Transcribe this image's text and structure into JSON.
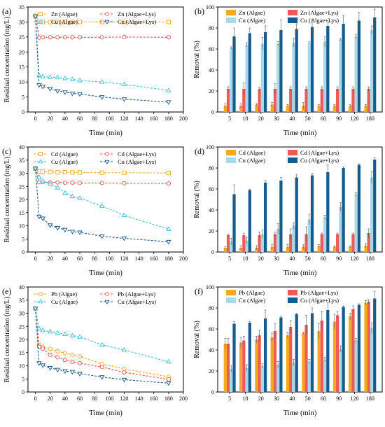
{
  "chart_data": [
    {
      "panel": "(a)",
      "type": "line",
      "xlabel": "Time (min)",
      "ylabel": "Residual concentration (mg/L)",
      "xlim": [
        -10,
        200
      ],
      "ylim": [
        0,
        35
      ],
      "xticks": [
        0,
        20,
        40,
        60,
        80,
        100,
        120,
        140,
        160,
        180,
        200
      ],
      "yticks": [
        0,
        5,
        10,
        15,
        20,
        25,
        30,
        35
      ],
      "legend": "top, two columns",
      "series": [
        {
          "name": "Zn (Algae)",
          "color": "#F5A623",
          "marker": "square",
          "dash": "dash",
          "x": [
            0,
            5,
            10,
            20,
            30,
            40,
            50,
            60,
            90,
            120,
            180
          ],
          "y": [
            31.9,
            30.1,
            30.0,
            30.0,
            30.0,
            30.0,
            30.0,
            30.0,
            30.0,
            30.0,
            30.0
          ]
        },
        {
          "name": "Zn (Algae+Lys)",
          "color": "#E8554E",
          "marker": "circle",
          "dash": "dash",
          "x": [
            0,
            5,
            10,
            20,
            30,
            40,
            50,
            60,
            90,
            120,
            180
          ],
          "y": [
            31.9,
            24.8,
            24.9,
            24.9,
            24.9,
            24.9,
            24.9,
            24.9,
            24.9,
            25.0,
            24.9
          ]
        },
        {
          "name": "Cu (Algae)",
          "color": "#3FC1E0",
          "marker": "triangle-up",
          "dash": "dash",
          "x": [
            0,
            5,
            10,
            20,
            30,
            40,
            50,
            60,
            90,
            120,
            180
          ],
          "y": [
            31.9,
            12.2,
            11.8,
            11.6,
            11.5,
            11.2,
            10.9,
            10.5,
            10.0,
            9.2,
            7.2
          ]
        },
        {
          "name": "Cu (Algae+Lys)",
          "color": "#1E5A8C",
          "marker": "triangle-down",
          "dash": "dash",
          "x": [
            0,
            5,
            10,
            20,
            30,
            40,
            50,
            60,
            90,
            120,
            180
          ],
          "y": [
            31.9,
            9.0,
            8.5,
            7.8,
            7.0,
            6.6,
            6.2,
            6.0,
            5.0,
            4.3,
            3.3
          ]
        }
      ]
    },
    {
      "panel": "(b)",
      "type": "bar",
      "xlabel": "Time (min)",
      "ylabel": "Removal (%)",
      "ylim": [
        0,
        100
      ],
      "yticks": [
        0,
        20,
        40,
        60,
        80,
        100
      ],
      "categories": [
        "5",
        "10",
        "20",
        "30",
        "40",
        "50",
        "60",
        "90",
        "120",
        "180"
      ],
      "legend": "top, two columns",
      "series": [
        {
          "name": "Zn (Algae)",
          "color": "#F5A91E",
          "values": [
            6,
            6,
            7,
            7,
            6,
            6,
            6,
            6,
            6,
            6
          ],
          "err": [
            2,
            2,
            1,
            2,
            1,
            3,
            1,
            1,
            1,
            1
          ]
        },
        {
          "name": "Zn (Algae+Lys)",
          "color": "#EF5A57",
          "values": [
            22,
            22,
            22,
            22,
            22,
            22,
            22,
            22,
            22,
            22
          ],
          "err": [
            2,
            6,
            1,
            5,
            2,
            2,
            2,
            2,
            2,
            2
          ]
        },
        {
          "name": "Cu (Algae)",
          "color": "#A8D8EA",
          "values": [
            61,
            64,
            65,
            65,
            66,
            66,
            67,
            69,
            72,
            78
          ],
          "err": [
            1,
            2,
            6,
            2,
            4,
            1,
            5,
            1,
            2,
            4
          ]
        },
        {
          "name": "Cu (Algae+Lys)",
          "color": "#155C8E",
          "values": [
            72,
            75,
            76,
            78,
            79,
            81,
            82,
            84,
            87,
            90
          ],
          "err": [
            8,
            5,
            6,
            10,
            5,
            7,
            4,
            8,
            8,
            8
          ]
        }
      ]
    },
    {
      "panel": "(c)",
      "type": "line",
      "xlabel": "Time (min)",
      "ylabel": "Residual concentration (mg/L)",
      "xlim": [
        -10,
        200
      ],
      "ylim": [
        0,
        40
      ],
      "xticks": [
        0,
        20,
        40,
        60,
        80,
        100,
        120,
        140,
        160,
        180,
        200
      ],
      "yticks": [
        0,
        5,
        10,
        15,
        20,
        25,
        30,
        35,
        40
      ],
      "legend": "top, two columns",
      "series": [
        {
          "name": "Cd (Algae)",
          "color": "#F5A623",
          "marker": "square",
          "dash": "dash",
          "x": [
            0,
            5,
            10,
            20,
            30,
            40,
            50,
            60,
            90,
            120,
            180
          ],
          "y": [
            31.8,
            30.7,
            30.6,
            30.5,
            30.4,
            30.4,
            30.3,
            30.3,
            30.2,
            30.2,
            30.1
          ]
        },
        {
          "name": "Cd (Algae+Lys)",
          "color": "#E8554E",
          "marker": "circle",
          "dash": "dash",
          "x": [
            0,
            5,
            10,
            20,
            30,
            40,
            50,
            60,
            90,
            120,
            180
          ],
          "y": [
            31.8,
            26.6,
            26.6,
            26.5,
            26.5,
            26.4,
            26.4,
            26.3,
            26.3,
            26.2,
            26.1
          ]
        },
        {
          "name": "Cu (Algae)",
          "color": "#3FC1E0",
          "marker": "triangle-up",
          "dash": "dash",
          "x": [
            0,
            5,
            10,
            20,
            30,
            40,
            50,
            60,
            90,
            120,
            180
          ],
          "y": [
            31.8,
            28.5,
            27.0,
            26.0,
            24.5,
            22.5,
            21.2,
            20.5,
            17.5,
            14.0,
            8.7
          ]
        },
        {
          "name": "Cu (Algae+Lys)",
          "color": "#1E5A8C",
          "marker": "triangle-down",
          "dash": "dash",
          "x": [
            0,
            5,
            10,
            20,
            30,
            40,
            50,
            60,
            90,
            120,
            180
          ],
          "y": [
            31.8,
            13.5,
            12.8,
            10.2,
            9.2,
            8.5,
            7.8,
            7.5,
            6.0,
            5.2,
            3.9
          ]
        }
      ]
    },
    {
      "panel": "(d)",
      "type": "bar",
      "xlabel": "Time (min)",
      "ylabel": "Removal (%)",
      "ylim": [
        0,
        100
      ],
      "yticks": [
        0,
        20,
        40,
        60,
        80,
        100
      ],
      "categories": [
        "5",
        "10",
        "20",
        "30",
        "40",
        "50",
        "60",
        "90",
        "120",
        "180"
      ],
      "legend": "top, two columns",
      "series": [
        {
          "name": "Cd (Algae)",
          "color": "#F5A91E",
          "values": [
            4,
            4,
            4,
            5,
            5,
            5,
            6,
            5,
            5,
            6
          ],
          "err": [
            1,
            2,
            2,
            2,
            2,
            2,
            1,
            1,
            1,
            2
          ]
        },
        {
          "name": "Cd (Algae+Lys)",
          "color": "#EF5A57",
          "values": [
            16,
            16,
            16,
            17,
            17,
            17,
            17,
            17,
            17,
            18
          ],
          "err": [
            1,
            2,
            3,
            2,
            5,
            7,
            1,
            1,
            1,
            4
          ]
        },
        {
          "name": "Cu (Algae)",
          "color": "#A8D8EA",
          "values": [
            10,
            11,
            17,
            22,
            25,
            31,
            33,
            43,
            55,
            71
          ],
          "err": [
            3,
            3,
            4,
            5,
            3,
            5,
            2,
            4,
            2,
            6
          ]
        },
        {
          "name": "Cu (Algae+Lys)",
          "color": "#155C8E",
          "values": [
            55,
            59,
            66,
            68,
            71,
            73,
            76,
            80,
            83,
            88
          ],
          "err": [
            9,
            1,
            2,
            3,
            3,
            2,
            7,
            1,
            1,
            2
          ]
        }
      ]
    },
    {
      "panel": "(e)",
      "type": "line",
      "xlabel": "Time (min)",
      "ylabel": "Residual concentration (mg/L)",
      "xlim": [
        -10,
        200
      ],
      "ylim": [
        0,
        40
      ],
      "xticks": [
        0,
        20,
        40,
        60,
        80,
        100,
        120,
        140,
        160,
        180,
        200
      ],
      "yticks": [
        0,
        5,
        10,
        15,
        20,
        25,
        30,
        35,
        40
      ],
      "legend": "top, two columns",
      "series": [
        {
          "name": "Pb (Algae)",
          "color": "#F5A623",
          "marker": "circle",
          "dash": "dash",
          "x": [
            0,
            5,
            10,
            20,
            30,
            40,
            50,
            60,
            90,
            120,
            180
          ],
          "y": [
            31.8,
            18.0,
            17.2,
            16.5,
            15.5,
            14.8,
            14.2,
            13.5,
            10.7,
            8.8,
            5.8
          ]
        },
        {
          "name": "Pb (Algae+Lys)",
          "color": "#E8554E",
          "marker": "circle",
          "dash": "dash",
          "x": [
            0,
            5,
            10,
            20,
            30,
            40,
            50,
            60,
            90,
            120,
            180
          ],
          "y": [
            31.8,
            17.2,
            16.5,
            14.2,
            13.2,
            12.2,
            11.5,
            11.0,
            9.5,
            7.5,
            4.8
          ]
        },
        {
          "name": "Cu (Algae)",
          "color": "#3FC1E0",
          "marker": "triangle-up",
          "dash": "dash",
          "x": [
            0,
            5,
            10,
            20,
            30,
            40,
            50,
            60,
            90,
            120,
            180
          ],
          "y": [
            31.8,
            24.2,
            23.5,
            23.0,
            22.5,
            22.0,
            21.5,
            21.0,
            18.0,
            16.0,
            11.5
          ]
        },
        {
          "name": "Cu (Algae+Lys)",
          "color": "#1E5A8C",
          "marker": "triangle-down",
          "dash": "dash",
          "x": [
            0,
            5,
            10,
            20,
            30,
            40,
            50,
            60,
            90,
            120,
            180
          ],
          "y": [
            31.8,
            11.0,
            10.2,
            9.2,
            8.5,
            8.0,
            7.7,
            7.0,
            5.7,
            4.7,
            3.4
          ]
        }
      ]
    },
    {
      "panel": "(f)",
      "type": "bar",
      "xlabel": "Time (min)",
      "ylabel": "Removal (%)",
      "ylim": [
        0,
        100
      ],
      "yticks": [
        0,
        20,
        40,
        60,
        80,
        100
      ],
      "categories": [
        "5",
        "10",
        "20",
        "30",
        "40",
        "50",
        "60",
        "90",
        "120",
        "180"
      ],
      "legend": "top, two columns",
      "series": [
        {
          "name": "Pb (Algae)",
          "color": "#F5A91E",
          "values": [
            46,
            47,
            50,
            52,
            54,
            56,
            58,
            67,
            72,
            85
          ],
          "err": [
            5,
            5,
            3,
            4,
            3,
            1,
            7,
            7,
            3,
            2
          ]
        },
        {
          "name": "Pb (Algae+Lys)",
          "color": "#EF5A57",
          "values": [
            46,
            49,
            54,
            58,
            62,
            64,
            68,
            73,
            79,
            86
          ],
          "err": [
            5,
            4,
            5,
            7,
            6,
            9,
            9,
            4,
            3,
            2
          ]
        },
        {
          "name": "Cu (Algae)",
          "color": "#A8D8EA",
          "values": [
            22,
            23,
            25,
            26,
            28,
            29,
            31,
            41,
            49,
            61
          ],
          "err": [
            3,
            3,
            2,
            3,
            3,
            2,
            2,
            3,
            2,
            5
          ]
        },
        {
          "name": "Cu (Algae+Lys)",
          "color": "#155C8E",
          "values": [
            65,
            66,
            70,
            71,
            74,
            75,
            78,
            81,
            83,
            89
          ],
          "err": [
            2,
            1,
            8,
            1,
            1,
            5,
            7,
            1,
            1,
            7
          ]
        }
      ]
    }
  ]
}
